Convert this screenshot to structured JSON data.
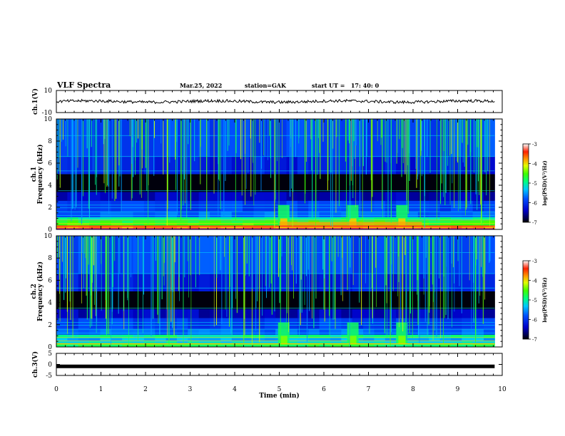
{
  "header": {
    "title": "VLF Spectra",
    "date": "Mar.25, 2022",
    "station": "station=GAK",
    "start_ut": "start UT =   17: 40: 0"
  },
  "chart_data": [
    {
      "type": "line",
      "panel": "ch1-waveform",
      "ylabel": "ch.1(V)",
      "ylim": [
        -10,
        10
      ],
      "yticks": [
        "10",
        "-10"
      ],
      "x_range_min": [
        0,
        9.83
      ],
      "level_v": 0,
      "trace_color": "#000000"
    },
    {
      "type": "heatmap",
      "panel": "ch1-spectrogram",
      "ylabel_channel": "ch.1",
      "ylabel": "Frequency (kHz)",
      "ylim_khz": [
        0,
        10
      ],
      "yticks": [
        "0",
        "2",
        "4",
        "6",
        "8",
        "10"
      ],
      "x_range_min": [
        0,
        9.83
      ],
      "colorbar": {
        "label": "log(PSD)(V²/Hz)",
        "range": [
          -7,
          -3
        ],
        "ticks": [
          "-3",
          "-4",
          "-5",
          "-6",
          "-7"
        ]
      },
      "enhancement_bursts_min": [
        5.1,
        6.65,
        7.75
      ]
    },
    {
      "type": "heatmap",
      "panel": "ch2-spectrogram",
      "ylabel_channel": "ch.2",
      "ylabel": "Frequency (kHz)",
      "ylim_khz": [
        0,
        10
      ],
      "yticks": [
        "0",
        "2",
        "4",
        "6",
        "8",
        "10"
      ],
      "x_range_min": [
        0,
        9.83
      ],
      "colorbar": {
        "label": "log(PSD)(V²/Hz)",
        "range": [
          -7,
          -3
        ],
        "ticks": [
          "-3",
          "-4",
          "-5",
          "-6",
          "-7"
        ]
      },
      "enhancement_bursts_min": [
        5.1,
        6.65,
        7.75
      ]
    },
    {
      "type": "line",
      "panel": "ch3-waveform",
      "ylabel": "ch.3(V)",
      "ylim": [
        -5,
        5
      ],
      "yticks": [
        "5",
        "0",
        "-5"
      ],
      "x_range_min": [
        0,
        9.83
      ],
      "level_v": -0.9,
      "trace_color": "#000000"
    }
  ],
  "xaxis": {
    "label": "Time (min)",
    "ticks": [
      "0",
      "1",
      "2",
      "3",
      "4",
      "5",
      "6",
      "7",
      "8",
      "9",
      "10"
    ],
    "xlim": [
      0,
      10
    ]
  }
}
